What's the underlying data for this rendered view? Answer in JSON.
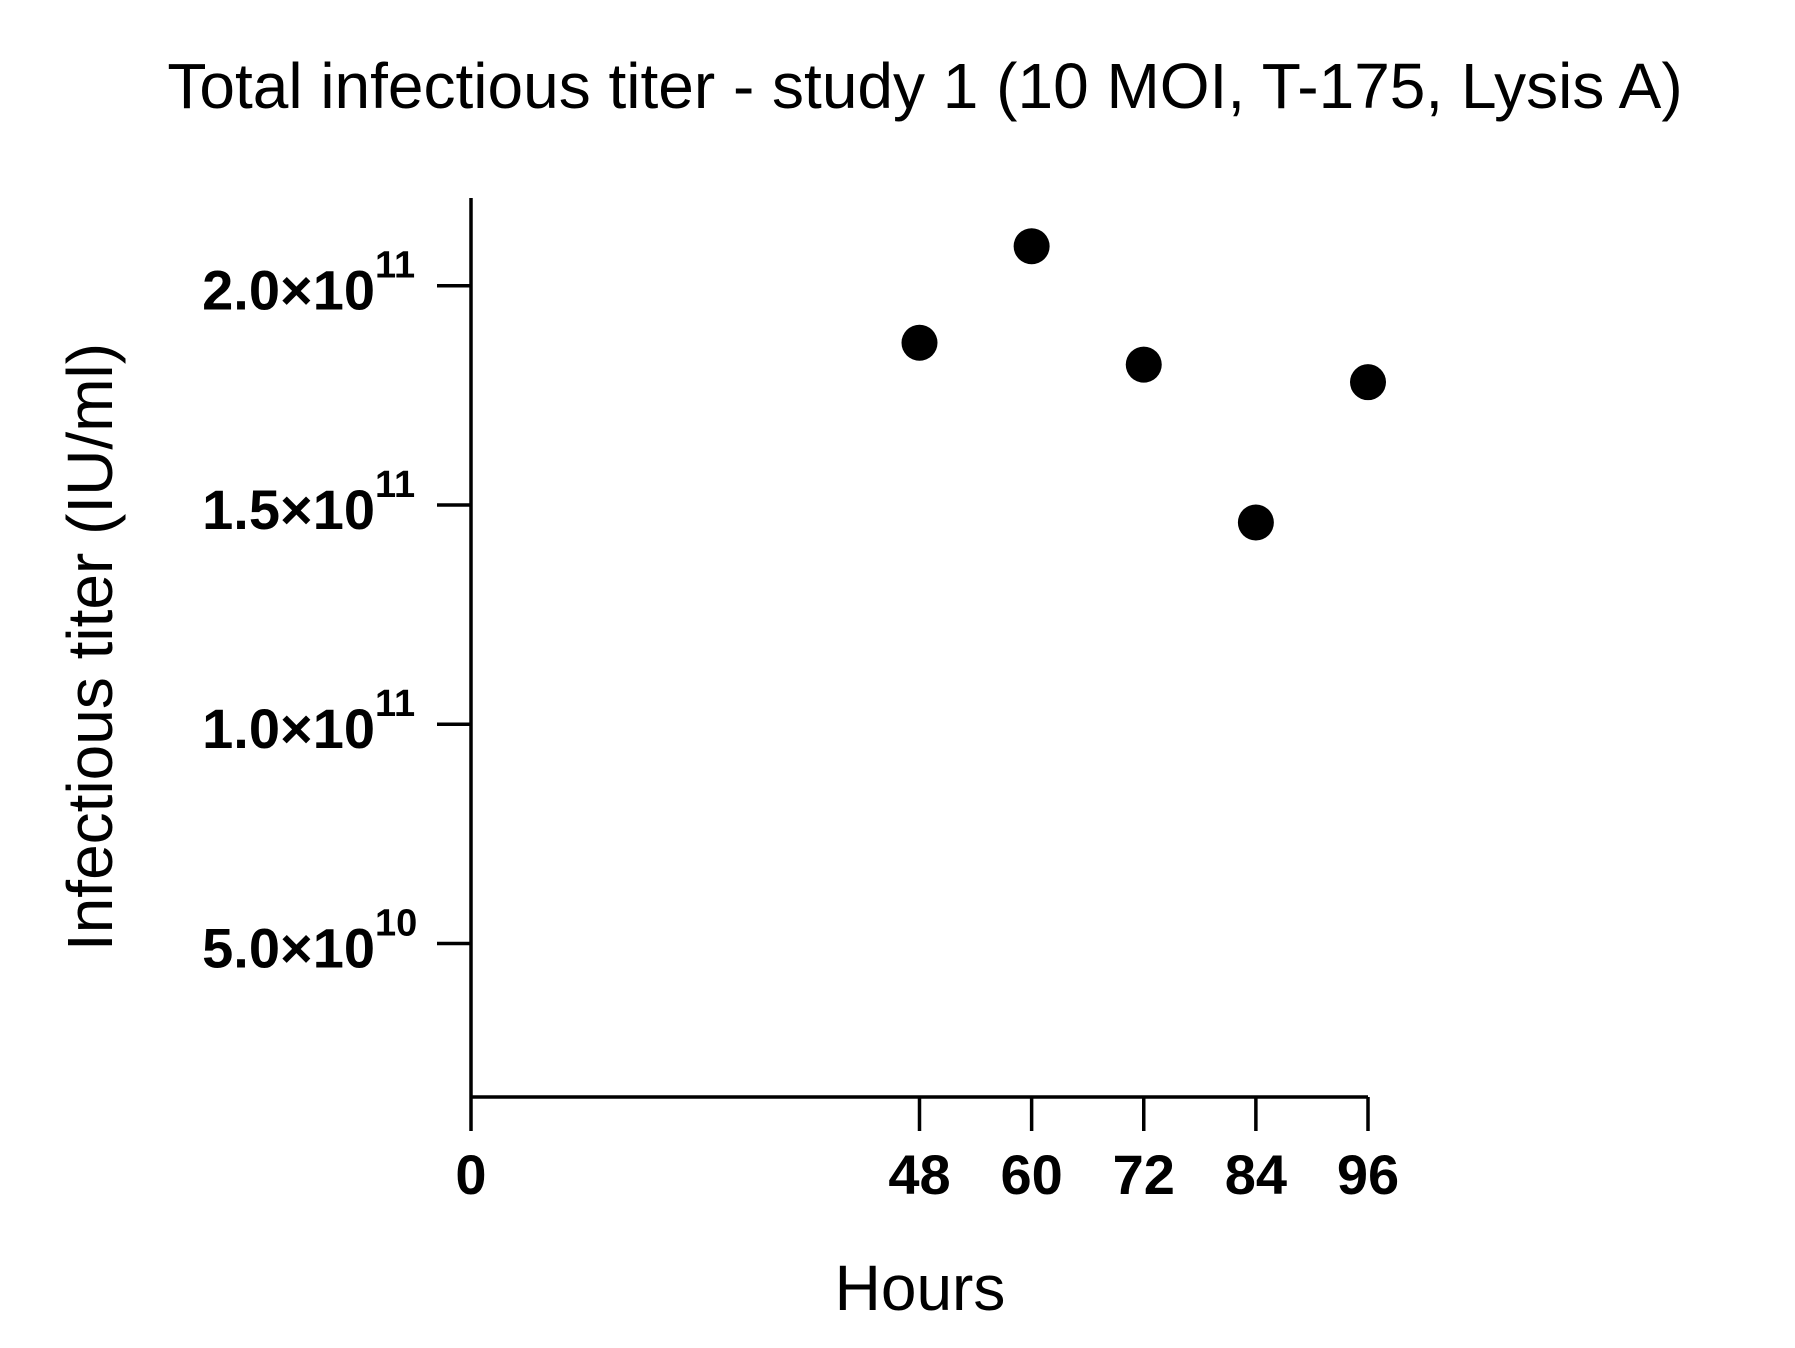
{
  "chart_data": {
    "type": "scatter",
    "title": "Total infectious titer - study 1 (10 MOI, T-175, Lysis A)",
    "xlabel": "Hours",
    "ylabel": "Infectious titer (IU/ml)",
    "xlim": [
      0,
      96
    ],
    "ylim": [
      15000000000,
      220000000000
    ],
    "x_ticks": [
      {
        "value": 0,
        "label": "0"
      },
      {
        "value": 48,
        "label": "48"
      },
      {
        "value": 60,
        "label": "60"
      },
      {
        "value": 72,
        "label": "72"
      },
      {
        "value": 84,
        "label": "84"
      },
      {
        "value": 96,
        "label": "96"
      }
    ],
    "y_ticks": [
      {
        "value": 50000000000,
        "mantissa": "5.0×10",
        "exponent": "10"
      },
      {
        "value": 100000000000,
        "mantissa": "1.0×10",
        "exponent": "11"
      },
      {
        "value": 150000000000,
        "mantissa": "1.5×10",
        "exponent": "11"
      },
      {
        "value": 200000000000,
        "mantissa": "2.0×10",
        "exponent": "11"
      }
    ],
    "series": [
      {
        "points": [
          {
            "x": 48,
            "y": 187000000000
          },
          {
            "x": 60,
            "y": 209000000000
          },
          {
            "x": 72,
            "y": 182000000000
          },
          {
            "x": 84,
            "y": 146000000000
          },
          {
            "x": 96,
            "y": 178000000000
          }
        ],
        "marker": "circle",
        "color": "#000000"
      }
    ],
    "grid": false,
    "legend": "none"
  }
}
